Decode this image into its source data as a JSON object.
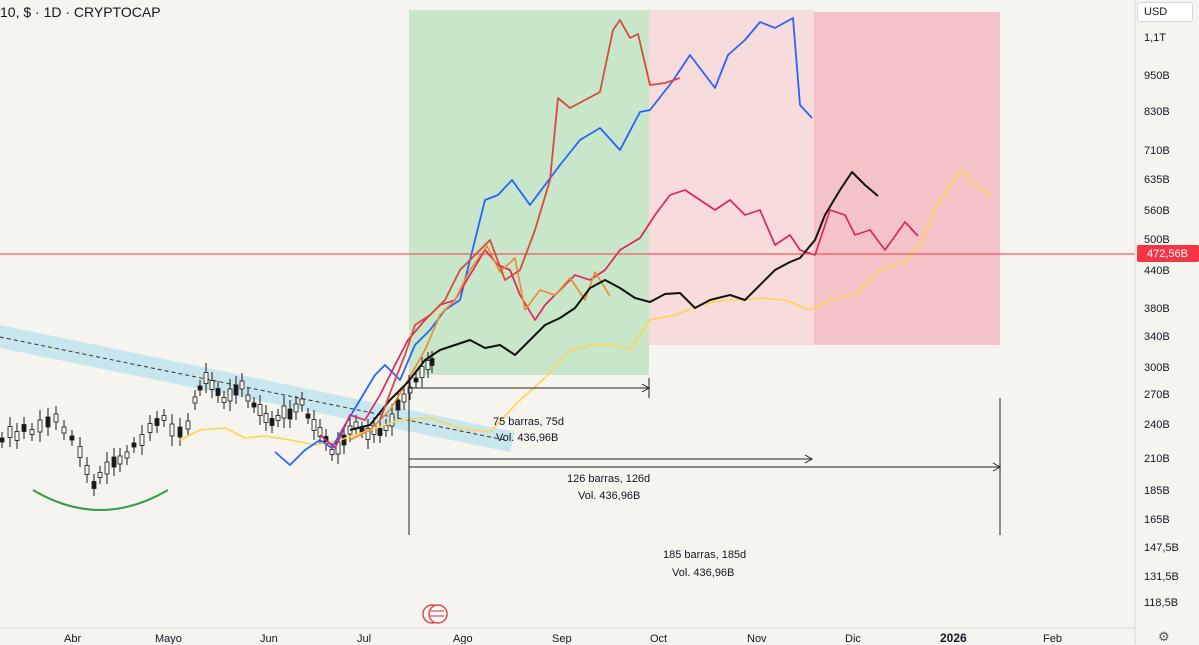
{
  "header": {
    "title": "10, $ · 1D · CRYPTOCAP"
  },
  "currency": "USD",
  "settings_icon": "gear-icon",
  "chart_data": {
    "type": "line",
    "y_scale": "log",
    "y_ticks": [
      "1,1T",
      "950B",
      "830B",
      "710B",
      "635B",
      "560B",
      "500B",
      "440B",
      "380B",
      "340B",
      "300B",
      "270B",
      "240B",
      "210B",
      "185B",
      "165B",
      "147,5B",
      "131,5B",
      "118,5B"
    ],
    "x_ticks": [
      {
        "label": "Abr",
        "bold": false
      },
      {
        "label": "Mayo",
        "bold": false
      },
      {
        "label": "Jun",
        "bold": false
      },
      {
        "label": "Jul",
        "bold": false
      },
      {
        "label": "Ago",
        "bold": false
      },
      {
        "label": "Sep",
        "bold": false
      },
      {
        "label": "Oct",
        "bold": false
      },
      {
        "label": "Nov",
        "bold": false
      },
      {
        "label": "Dic",
        "bold": false
      },
      {
        "label": "2026",
        "bold": true
      },
      {
        "label": "Feb",
        "bold": false
      }
    ],
    "price_line": {
      "value": "472,56B",
      "color": "#f23645"
    },
    "zones": [
      {
        "name": "zone-green",
        "color": "#c8e6c9"
      },
      {
        "name": "zone-light-pink",
        "color": "#f8dcdc"
      },
      {
        "name": "zone-pink",
        "color": "#f4c3c7"
      }
    ],
    "measurements": [
      {
        "bars": "75 barras, 75d",
        "vol": "Vol. 436,96B"
      },
      {
        "bars": "126 barras, 126d",
        "vol": "Vol. 436,96B"
      },
      {
        "bars": "185 barras, 185d",
        "vol": "Vol. 436,96B"
      }
    ],
    "series_colors": {
      "blue": "#2962ff",
      "red": "#d84b3a",
      "crimson": "#e0245e",
      "orange": "#f0892a",
      "yellow": "#ffd54f",
      "black": "#111111",
      "candles": "#1a1a1a",
      "arc": "#2e9e47",
      "channel": "#bfe3ec"
    }
  }
}
